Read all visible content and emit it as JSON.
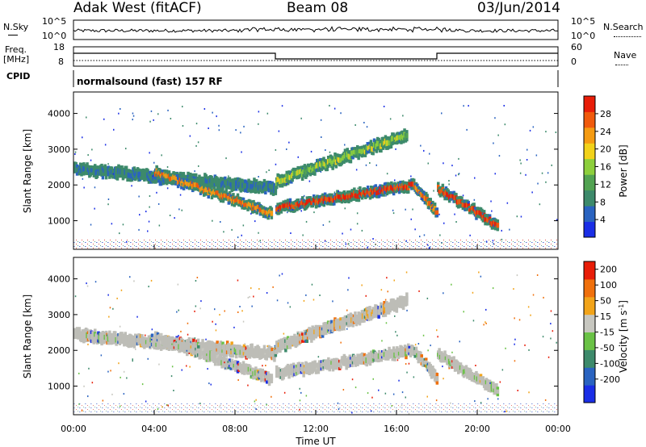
{
  "header": {
    "station": "Adak West (fitACF)",
    "beam": "Beam 08",
    "date": "03/Jun/2014"
  },
  "panels": {
    "nsky": {
      "label": "N.Sky",
      "ticks": [
        "10^5",
        "10^0"
      ],
      "right_label": "N.Search",
      "right_ticks": [
        "10^5",
        "10^0"
      ]
    },
    "freq": {
      "label_top": "Freq.",
      "label_bottom": "[MHz]",
      "ticks": [
        "18",
        "8"
      ],
      "right_label": "Nave",
      "right_ticks": [
        "60",
        "0"
      ]
    },
    "cpid": {
      "label": "CPID",
      "program": "normalsound (fast) 157 RF"
    }
  },
  "colors": {
    "power_scale": [
      "#1a2ee6",
      "#2a63c0",
      "#3d8a6b",
      "#52a352",
      "#8dcf3c",
      "#f2d21a",
      "#f59b12",
      "#f05a0c",
      "#e81d08"
    ],
    "velocity_scale": [
      "#1a2ee6",
      "#2a63c0",
      "#3d8a6b",
      "#6ac246",
      "#c7c7c0",
      "#f2a41a",
      "#f0700c",
      "#e81d08"
    ],
    "ground_gray": "#bdbdb7"
  },
  "chart_data": [
    {
      "type": "heatmap",
      "name": "power",
      "xlabel": "Time UT",
      "ylabel": "Slant Range [km]",
      "x_ticks": [
        "00:00",
        "04:00",
        "08:00",
        "12:00",
        "16:00",
        "20:00",
        "00:00"
      ],
      "y_ticks": [
        1000,
        2000,
        3000,
        4000
      ],
      "xlim": [
        0,
        24
      ],
      "ylim": [
        200,
        4600
      ],
      "colorbar": {
        "label": "Power [dB]",
        "ticks": [
          4,
          8,
          12,
          16,
          20,
          24,
          28
        ]
      },
      "echo_bands": [
        {
          "t_start": 0.0,
          "t_end": 10.0,
          "range_start": 2450,
          "range_end": 1900,
          "level": 8
        },
        {
          "t_start": 4.0,
          "t_end": 9.8,
          "range_start": 2350,
          "range_end": 1200,
          "level": 24
        },
        {
          "t_start": 10.0,
          "t_end": 16.8,
          "range_start": 1350,
          "range_end": 2000,
          "level": 28
        },
        {
          "t_start": 16.8,
          "t_end": 18.0,
          "range_start": 2000,
          "range_end": 1200,
          "level": 24
        },
        {
          "t_start": 18.0,
          "t_end": 21.0,
          "range_start": 1900,
          "range_end": 850,
          "level": 28
        },
        {
          "t_start": 10.0,
          "t_end": 16.5,
          "range_start": 2100,
          "range_end": 3400,
          "level": 16
        }
      ]
    },
    {
      "type": "heatmap",
      "name": "velocity",
      "xlabel": "Time UT",
      "ylabel": "Slant Range [km]",
      "x_ticks": [
        "00:00",
        "04:00",
        "08:00",
        "12:00",
        "16:00",
        "20:00",
        "00:00"
      ],
      "y_ticks": [
        1000,
        2000,
        3000,
        4000
      ],
      "xlim": [
        0,
        24
      ],
      "ylim": [
        200,
        4600
      ],
      "colorbar": {
        "label": "Velocity [m s^-1]",
        "ticks": [
          200,
          100,
          50,
          15,
          -15,
          -50,
          -100,
          -200
        ]
      }
    }
  ]
}
